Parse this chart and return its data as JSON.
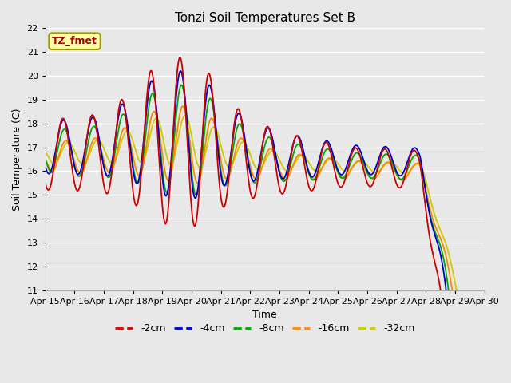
{
  "title": "Tonzi Soil Temperatures Set B",
  "xlabel": "Time",
  "ylabel": "Soil Temperature (C)",
  "ylim": [
    11.0,
    22.0
  ],
  "yticks": [
    11.0,
    12.0,
    13.0,
    14.0,
    15.0,
    16.0,
    17.0,
    18.0,
    19.0,
    20.0,
    21.0,
    22.0
  ],
  "xtick_labels": [
    "Apr 15",
    "Apr 16",
    "Apr 17",
    "Apr 18",
    "Apr 19",
    "Apr 20",
    "Apr 21",
    "Apr 22",
    "Apr 23",
    "Apr 24",
    "Apr 25",
    "Apr 26",
    "Apr 27",
    "Apr 28",
    "Apr 29",
    "Apr 30"
  ],
  "colors": {
    "-2cm": "#cc0000",
    "-4cm": "#0000cc",
    "-8cm": "#00aa00",
    "-16cm": "#ff8800",
    "-32cm": "#cccc00"
  },
  "legend_label": "TZ_fmet",
  "legend_box_facecolor": "#ffffaa",
  "legend_box_edgecolor": "#999900",
  "background_color": "#e8e8e8",
  "grid_color": "#ffffff",
  "fig_facecolor": "#e8e8e8",
  "linewidth": 1.3,
  "title_fontsize": 11,
  "axis_label_fontsize": 9,
  "tick_fontsize": 8
}
